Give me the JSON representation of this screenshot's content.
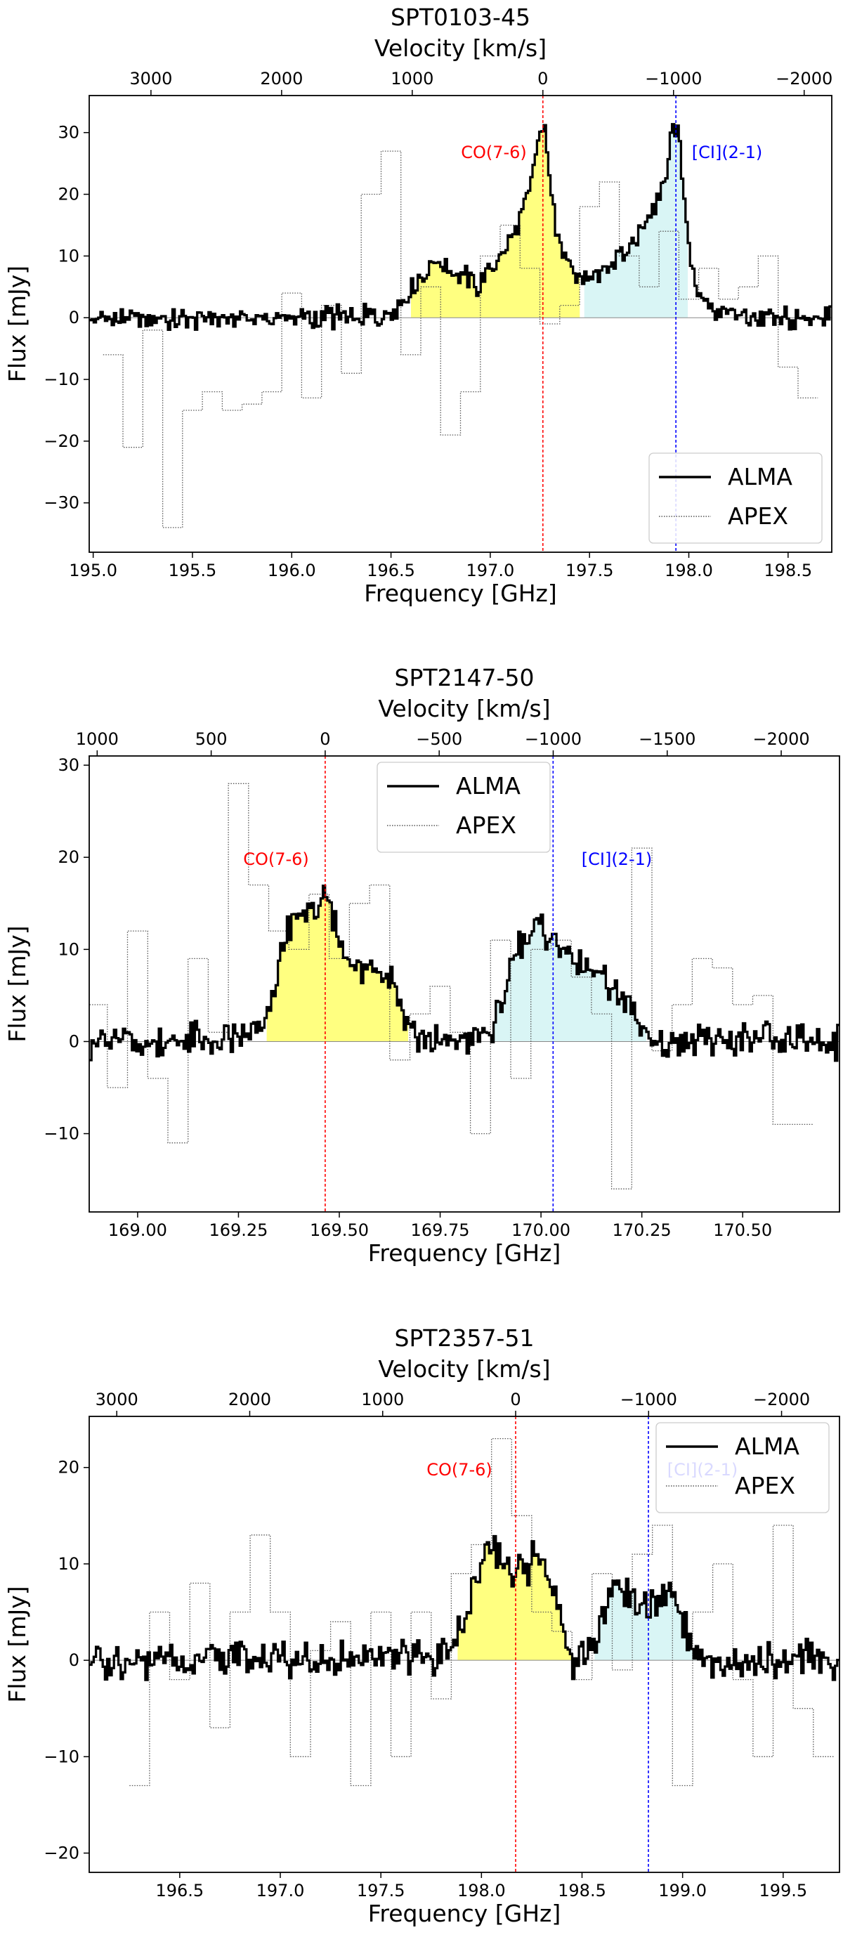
{
  "figure": {
    "freq_label": "Frequency [GHz]",
    "vel_label": "Velocity [km/s]",
    "flux_label": "Flux [mJy]",
    "legend": [
      "ALMA",
      "APEX"
    ],
    "line_labels": [
      "CO(7-6)",
      "[CI](2-1)"
    ],
    "colors": {
      "co": "#ff0000",
      "ci": "#0000ff",
      "co_fill": "#ffff80",
      "ci_fill": "#d9f5f5",
      "alma": "#000000",
      "apex": "#555555"
    }
  },
  "chart_data": [
    {
      "type": "line",
      "title": "SPT0103-45",
      "xlabel": "Frequency [GHz]",
      "ylabel": "Flux [mJy]",
      "top_xlabel": "Velocity [km/s]",
      "xlim": [
        194.98,
        198.72
      ],
      "ylim": [
        -38,
        36
      ],
      "xticks": [
        195.0,
        195.5,
        196.0,
        196.5,
        197.0,
        197.5,
        198.0,
        198.5
      ],
      "xtick_labels": [
        "195.0",
        "195.5",
        "196.0",
        "196.5",
        "197.0",
        "197.5",
        "198.0",
        "198.5"
      ],
      "yticks": [
        -30,
        -20,
        -10,
        0,
        10,
        20,
        30
      ],
      "ytick_labels": [
        "−30",
        "−20",
        "−10",
        "0",
        "10",
        "20",
        "30"
      ],
      "vticks": [
        3000,
        2000,
        1000,
        0,
        -1000,
        -2000
      ],
      "vtick_labels": [
        "3000",
        "2000",
        "1000",
        "0",
        "−1000",
        "−2000"
      ],
      "co_freq": 197.265,
      "ci_freq": 197.935,
      "legend_loc": "lower-right",
      "alma_series": {
        "name": "ALMA",
        "x": [
          195.0,
          195.5,
          196.0,
          196.45,
          196.55,
          196.65,
          196.75,
          196.85,
          196.95,
          197.05,
          197.12,
          197.18,
          197.22,
          197.25,
          197.27,
          197.29,
          197.33,
          197.4,
          197.45,
          197.55,
          197.65,
          197.75,
          197.82,
          197.88,
          197.92,
          197.94,
          197.96,
          198.0,
          198.05,
          198.15,
          198.3,
          198.5,
          198.72
        ],
        "y": [
          0,
          0,
          0,
          0,
          2,
          7,
          9,
          7,
          5,
          10,
          14,
          18,
          24,
          30,
          31,
          25,
          14,
          9,
          6,
          7,
          10,
          13,
          18,
          23,
          30,
          32,
          26,
          11,
          4,
          1,
          0,
          0,
          0
        ]
      },
      "apex_series": {
        "name": "APEX",
        "x": [
          195.1,
          195.2,
          195.3,
          195.4,
          195.5,
          195.6,
          195.7,
          195.8,
          195.9,
          196.0,
          196.1,
          196.2,
          196.3,
          196.4,
          196.5,
          196.6,
          196.7,
          196.8,
          196.9,
          197.0,
          197.1,
          197.2,
          197.3,
          197.4,
          197.5,
          197.6,
          197.7,
          197.8,
          197.9,
          198.0,
          198.1,
          198.2,
          198.3,
          198.4,
          198.5,
          198.6
        ],
        "y": [
          -6,
          -21,
          -2,
          -34,
          -15,
          -12,
          -15,
          -14,
          -12,
          4,
          -13,
          2,
          -9,
          20,
          27,
          -6,
          5,
          -19,
          -12,
          10,
          15,
          8,
          -1,
          2,
          18,
          22,
          10,
          5,
          14,
          3,
          8,
          3,
          5,
          10,
          -8,
          -13
        ]
      },
      "co_fill_range": [
        196.6,
        197.45
      ],
      "ci_fill_range": [
        197.47,
        198.0
      ]
    },
    {
      "type": "line",
      "title": "SPT2147-50",
      "xlabel": "Frequency [GHz]",
      "ylabel": "Flux [mJy]",
      "top_xlabel": "Velocity [km/s]",
      "xlim": [
        168.88,
        170.74
      ],
      "ylim": [
        -18.5,
        31
      ],
      "xticks": [
        169.0,
        169.25,
        169.5,
        169.75,
        170.0,
        170.25,
        170.5
      ],
      "xtick_labels": [
        "169.00",
        "169.25",
        "169.50",
        "169.75",
        "170.00",
        "170.25",
        "170.50"
      ],
      "yticks": [
        -10,
        0,
        10,
        20,
        30
      ],
      "ytick_labels": [
        "−10",
        "0",
        "10",
        "20",
        "30"
      ],
      "vticks": [
        1000,
        500,
        0,
        -500,
        -1000,
        -1500,
        -2000
      ],
      "vtick_labels": [
        "1000",
        "500",
        "0",
        "−500",
        "−1000",
        "−1500",
        "−2000"
      ],
      "co_freq": 169.465,
      "ci_freq": 170.03,
      "legend_loc": "top-center",
      "alma_series": {
        "name": "ALMA",
        "x": [
          168.88,
          169.2,
          169.3,
          169.34,
          169.37,
          169.4,
          169.43,
          169.46,
          169.49,
          169.52,
          169.56,
          169.6,
          169.63,
          169.66,
          169.7,
          169.85,
          169.9,
          169.93,
          169.96,
          169.99,
          170.02,
          170.05,
          170.08,
          170.12,
          170.16,
          170.2,
          170.24,
          170.28,
          170.4,
          170.74
        ],
        "y": [
          0,
          0,
          1,
          6,
          12,
          14,
          14,
          15,
          13,
          9,
          7,
          8,
          7,
          3,
          0,
          0,
          3,
          9,
          11,
          12,
          12,
          10,
          9,
          8,
          6,
          5,
          2,
          0,
          0,
          0
        ]
      },
      "apex_series": {
        "name": "APEX",
        "x": [
          168.9,
          168.95,
          169.0,
          169.05,
          169.1,
          169.15,
          169.2,
          169.25,
          169.3,
          169.35,
          169.4,
          169.45,
          169.5,
          169.55,
          169.6,
          169.65,
          169.7,
          169.75,
          169.8,
          169.85,
          169.9,
          169.95,
          170.0,
          170.05,
          170.1,
          170.15,
          170.2,
          170.25,
          170.3,
          170.35,
          170.4,
          170.45,
          170.5,
          170.55,
          170.6,
          170.65
        ],
        "y": [
          4,
          -5,
          12,
          -4,
          -11,
          9,
          1,
          28,
          17,
          12,
          10,
          16,
          9,
          15,
          17,
          -2,
          3,
          6,
          1,
          -10,
          11,
          -4,
          10,
          11,
          7,
          3,
          -16,
          21,
          -1,
          4,
          9,
          8,
          4,
          5,
          -9,
          -9
        ]
      },
      "co_fill_range": [
        169.32,
        169.67
      ],
      "ci_fill_range": [
        169.88,
        170.26
      ]
    },
    {
      "type": "line",
      "title": "SPT2357-51",
      "xlabel": "Frequency [GHz]",
      "ylabel": "Flux [mJy]",
      "top_xlabel": "Velocity [km/s]",
      "xlim": [
        196.05,
        199.78
      ],
      "ylim": [
        -22,
        25.3
      ],
      "xticks": [
        196.5,
        197.0,
        197.5,
        198.0,
        198.5,
        199.0,
        199.5
      ],
      "xtick_labels": [
        "196.5",
        "197.0",
        "197.5",
        "198.0",
        "198.5",
        "199.0",
        "199.5"
      ],
      "yticks": [
        -20,
        -10,
        0,
        10,
        20
      ],
      "ytick_labels": [
        "−20",
        "−10",
        "0",
        "10",
        "20"
      ],
      "vticks": [
        3000,
        2000,
        1000,
        0,
        -1000,
        -2000
      ],
      "vtick_labels": [
        "3000",
        "2000",
        "1000",
        "0",
        "−1000",
        "−2000"
      ],
      "co_freq": 198.17,
      "ci_freq": 198.83,
      "legend_loc": "top-right",
      "alma_series": {
        "name": "ALMA",
        "x": [
          196.05,
          197.0,
          197.7,
          197.85,
          197.92,
          197.98,
          198.03,
          198.07,
          198.11,
          198.15,
          198.19,
          198.23,
          198.27,
          198.31,
          198.37,
          198.45,
          198.55,
          198.62,
          198.67,
          198.72,
          198.78,
          198.84,
          198.9,
          198.96,
          199.02,
          199.1,
          199.3,
          199.78
        ],
        "y": [
          0,
          0,
          0,
          1,
          4,
          9,
          12,
          12,
          10,
          9,
          10,
          9,
          11,
          10,
          6,
          0,
          1,
          5,
          8,
          7,
          6,
          6,
          7,
          7,
          3,
          0,
          0,
          0
        ]
      },
      "apex_series": {
        "name": "APEX",
        "x": [
          196.3,
          196.4,
          196.5,
          196.6,
          196.7,
          196.8,
          196.9,
          197.0,
          197.1,
          197.2,
          197.3,
          197.4,
          197.5,
          197.6,
          197.7,
          197.8,
          197.9,
          198.0,
          198.1,
          198.2,
          198.3,
          198.4,
          198.5,
          198.6,
          198.7,
          198.8,
          198.9,
          199.0,
          199.1,
          199.2,
          199.3,
          199.4,
          199.5,
          199.6,
          199.7
        ],
        "y": [
          -13,
          5,
          -2,
          8,
          -7,
          5,
          13,
          5,
          -10,
          1,
          4,
          -13,
          5,
          -10,
          5,
          -4,
          9,
          12,
          23,
          15,
          5,
          3,
          -2,
          9,
          -1,
          11,
          14,
          -13,
          5,
          10,
          -2,
          -10,
          14,
          -5,
          -10
        ]
      },
      "co_fill_range": [
        197.88,
        198.45
      ],
      "ci_fill_range": [
        198.56,
        199.08
      ]
    }
  ]
}
